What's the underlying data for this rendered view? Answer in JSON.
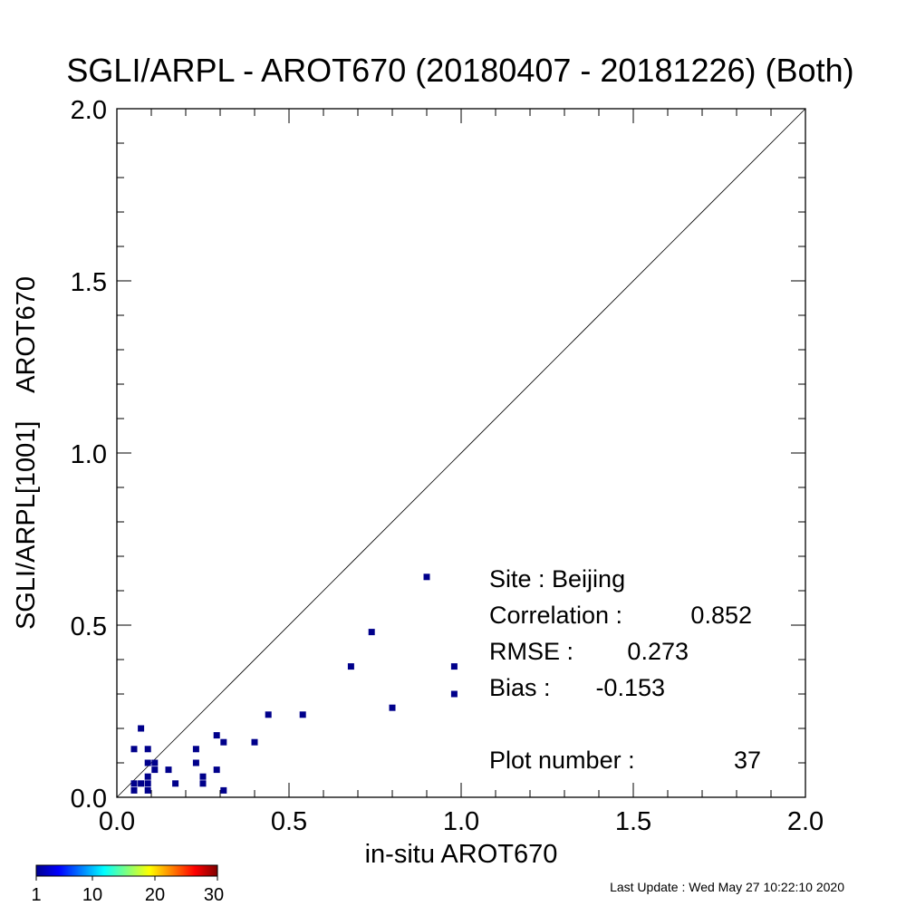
{
  "chart_data": {
    "type": "scatter",
    "title": "SGLI/ARPL - AROT670 (20180407 - 20181226) (Both)",
    "xlabel": "in-situ AROT670",
    "ylabel": "SGLI/ARPL[1001]    AROT670",
    "xlim": [
      0.0,
      2.0
    ],
    "ylim": [
      0.0,
      2.0
    ],
    "x_ticks": [
      "0.0",
      "0.5",
      "1.0",
      "1.5",
      "2.0"
    ],
    "y_ticks": [
      "0.0",
      "0.5",
      "1.0",
      "1.5",
      "2.0"
    ],
    "reference_line": "1:1",
    "grid": false,
    "points": [
      {
        "x": 0.9,
        "y": 0.64
      },
      {
        "x": 0.74,
        "y": 0.48
      },
      {
        "x": 0.68,
        "y": 0.38
      },
      {
        "x": 0.98,
        "y": 0.38
      },
      {
        "x": 0.98,
        "y": 0.3
      },
      {
        "x": 0.8,
        "y": 0.26
      },
      {
        "x": 0.44,
        "y": 0.24
      },
      {
        "x": 0.54,
        "y": 0.24
      },
      {
        "x": 0.4,
        "y": 0.16
      },
      {
        "x": 0.07,
        "y": 0.2
      },
      {
        "x": 0.29,
        "y": 0.18
      },
      {
        "x": 0.31,
        "y": 0.16
      },
      {
        "x": 0.05,
        "y": 0.14
      },
      {
        "x": 0.09,
        "y": 0.14
      },
      {
        "x": 0.23,
        "y": 0.14
      },
      {
        "x": 0.09,
        "y": 0.1
      },
      {
        "x": 0.11,
        "y": 0.1
      },
      {
        "x": 0.23,
        "y": 0.1
      },
      {
        "x": 0.11,
        "y": 0.08
      },
      {
        "x": 0.15,
        "y": 0.08
      },
      {
        "x": 0.29,
        "y": 0.08
      },
      {
        "x": 0.09,
        "y": 0.06
      },
      {
        "x": 0.25,
        "y": 0.06
      },
      {
        "x": 0.05,
        "y": 0.04
      },
      {
        "x": 0.07,
        "y": 0.04
      },
      {
        "x": 0.09,
        "y": 0.04
      },
      {
        "x": 0.17,
        "y": 0.04
      },
      {
        "x": 0.25,
        "y": 0.04
      },
      {
        "x": 0.05,
        "y": 0.02
      },
      {
        "x": 0.09,
        "y": 0.02
      },
      {
        "x": 0.31,
        "y": 0.02
      }
    ],
    "point_color": "#00008b",
    "stats": {
      "site": "Site : Beijing",
      "correlation_label": "Correlation :",
      "correlation_value": "0.852",
      "rmse_label": "RMSE :",
      "rmse_value": "0.273",
      "bias_label": "Bias :",
      "bias_value": "-0.153",
      "plot_number_label": "Plot number :",
      "plot_number_value": "37"
    },
    "colorbar": {
      "ticks": [
        "1",
        "10",
        "20",
        "30"
      ],
      "range": [
        1,
        30
      ],
      "colormap": "jet"
    }
  },
  "footer": {
    "last_update": "Last Update : Wed May 27 10:22:10 2020"
  }
}
